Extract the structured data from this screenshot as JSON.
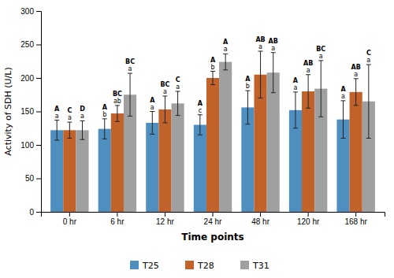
{
  "chart_data": {
    "type": "bar",
    "categories": [
      "0 hr",
      "6 hr",
      "12 hr",
      "24 hr",
      "48 hr",
      "120 hr",
      "168 hr"
    ],
    "series": [
      {
        "name": "T25",
        "color": "#4f8fc0",
        "values": [
          122,
          124,
          133,
          130,
          156,
          152,
          138
        ],
        "errors": [
          15,
          15,
          17,
          15,
          25,
          27,
          28
        ],
        "labels_upper": [
          "A",
          "A",
          "A",
          "A",
          "A",
          "A",
          "A"
        ],
        "labels_lower": [
          "a",
          "b",
          "a",
          "c",
          "b",
          "a",
          "a"
        ]
      },
      {
        "name": "T28",
        "color": "#c0622a",
        "values": [
          122,
          147,
          153,
          200,
          205,
          180,
          179
        ],
        "errors": [
          12,
          12,
          20,
          10,
          35,
          25,
          20
        ],
        "labels_upper": [
          "C",
          "BC",
          "BC",
          "A",
          "AB",
          "AB",
          "AB"
        ],
        "labels_lower": [
          "a",
          "ab",
          "a",
          "b",
          "a",
          "a",
          "a"
        ]
      },
      {
        "name": "T31",
        "color": "#a0a0a0",
        "values": [
          122,
          175,
          162,
          224,
          208,
          184,
          165
        ],
        "errors": [
          14,
          32,
          18,
          12,
          30,
          42,
          55
        ],
        "labels_upper": [
          "D",
          "BC",
          "C",
          "A",
          "AB",
          "BC",
          "C"
        ],
        "labels_lower": [
          "a",
          "a",
          "a",
          "a",
          "a",
          "a",
          "a"
        ]
      }
    ],
    "xlabel": "Time points",
    "ylabel": "Activity of SDH (U/L)",
    "ylim": [
      0,
      300
    ],
    "yticks": [
      0,
      50,
      100,
      150,
      200,
      250,
      300
    ],
    "grid": false,
    "legend": "bottom"
  }
}
